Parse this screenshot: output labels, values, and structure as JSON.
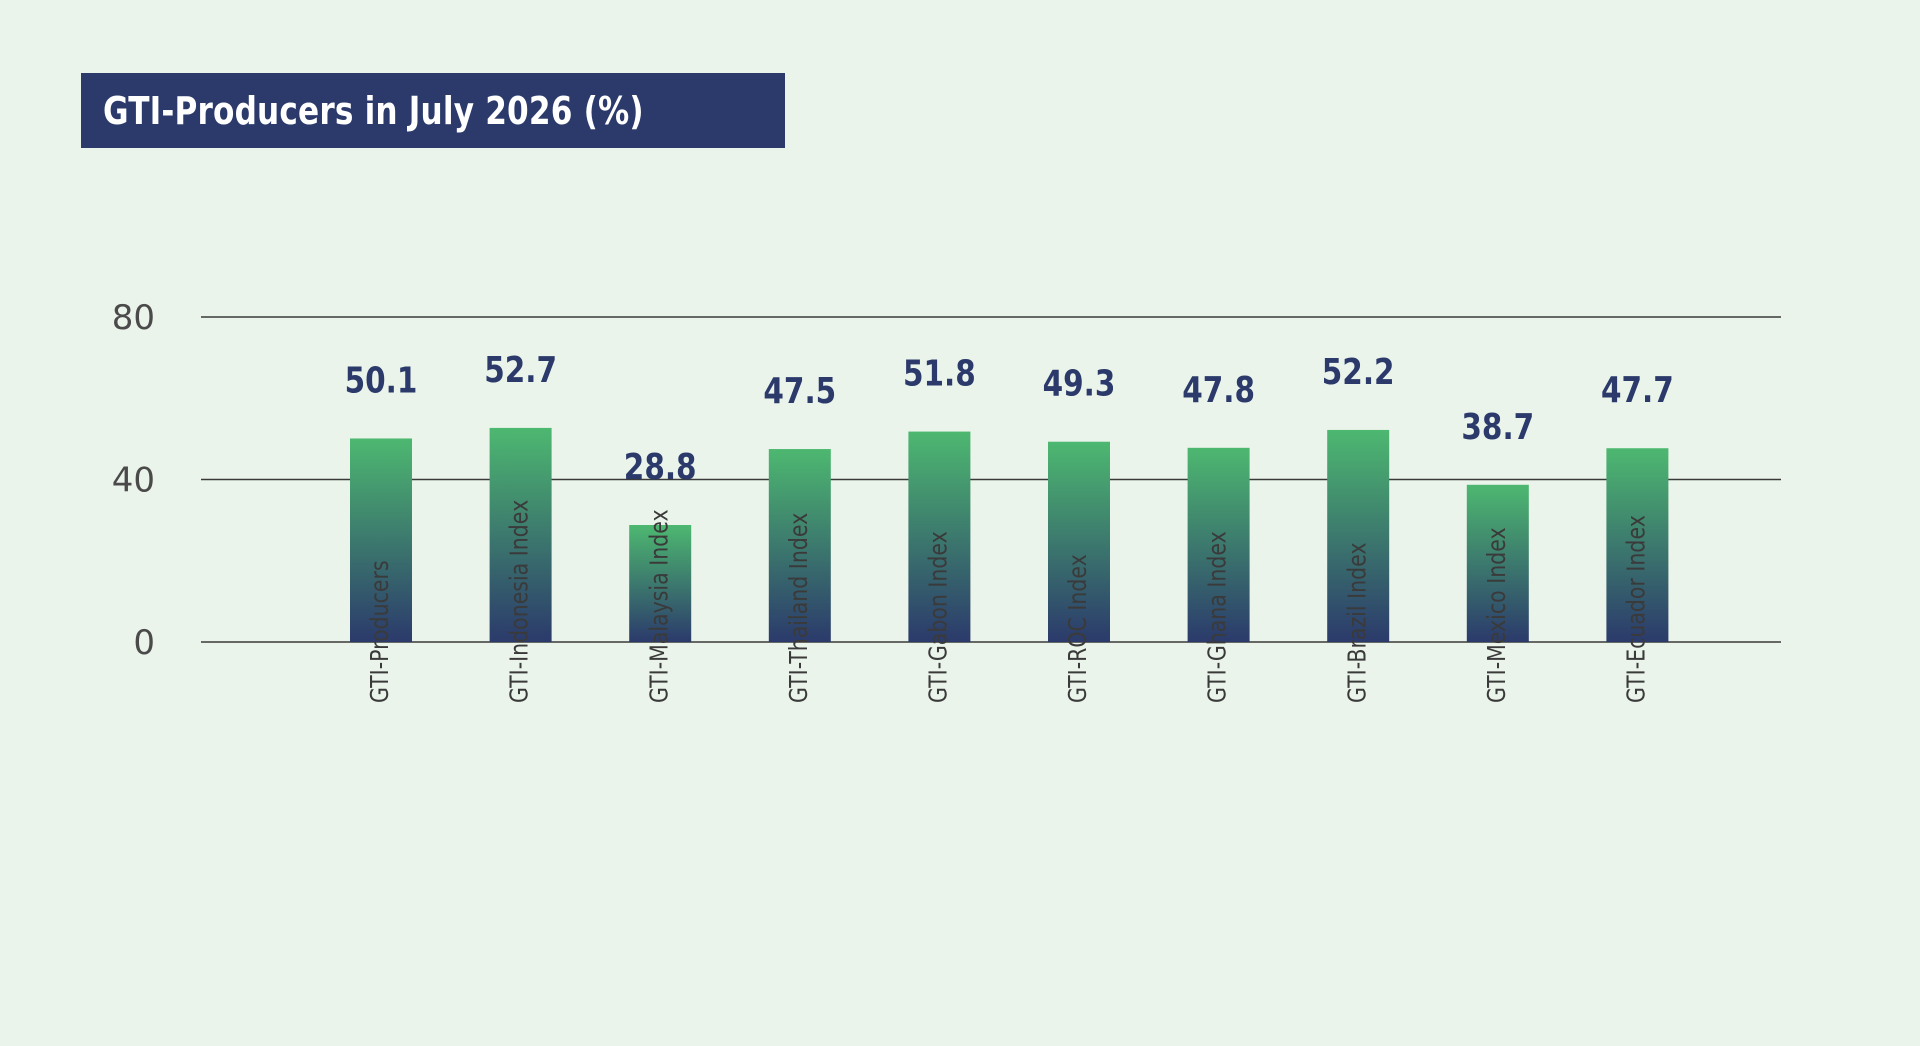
{
  "chart_data": {
    "type": "bar",
    "title": "GTI-Producers in July 2026 (%)",
    "categories": [
      "GTI-Producers",
      "GTI-Indonesia Index",
      "GTI-Malaysia Index",
      "GTI-Thailand Index",
      "GTI-Gabon Index",
      "GTI-ROC Index",
      "GTI-Ghana Index",
      "GTI-Brazil Index",
      "GTI-Mexico Index",
      "GTI-Ecuador Index"
    ],
    "values": [
      50.1,
      52.7,
      28.8,
      47.5,
      51.8,
      49.3,
      47.8,
      52.2,
      38.7,
      47.7
    ],
    "value_labels": [
      "50.1",
      "52.7",
      "28.8",
      "47.5",
      "51.8",
      "49.3",
      "47.8",
      "52.2",
      "38.7",
      "47.7"
    ],
    "yticks": [
      0,
      40,
      80
    ],
    "ytick_labels": [
      "0",
      "40",
      "80"
    ],
    "ylim": [
      0,
      80
    ],
    "grid": true,
    "xlabel": "",
    "ylabel": "",
    "colors": {
      "bar_top": "#4db870",
      "bar_bottom": "#2b3a6b",
      "title_bg": "#2b3a6b",
      "value_text": "#2b3a6b",
      "background": "#ebf4ea"
    }
  }
}
